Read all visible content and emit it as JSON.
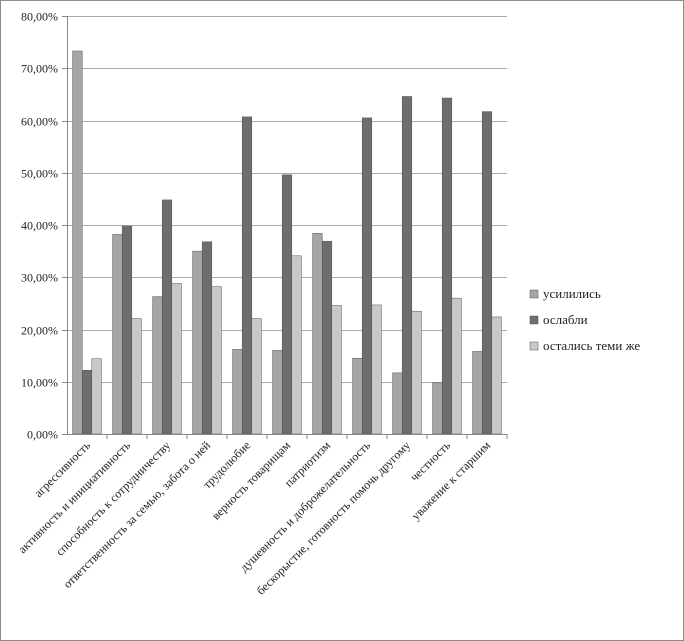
{
  "chart_data": {
    "type": "bar",
    "title": "",
    "xlabel": "",
    "ylabel": "",
    "ylim": [
      0,
      80
    ],
    "y_ticks": [
      "0,00%",
      "10,00%",
      "20,00%",
      "30,00%",
      "40,00%",
      "50,00%",
      "60,00%",
      "70,00%",
      "80,00%"
    ],
    "grid": true,
    "legend_position": "right",
    "categories": [
      "агрессивность",
      "активность и инициативность",
      "способность к сотрудничеству",
      "ответственность за семью, забота о ней",
      "трудолюбие",
      "верность товарищам",
      "патриотизм",
      "душевность и доброжелательность",
      "бескорыстие, готовность помочь другому",
      "честность",
      "уважение к старшим"
    ],
    "series": [
      {
        "name": "усилились",
        "color": "#a6a6a6",
        "values": [
          73.3,
          38.2,
          26.3,
          35.0,
          16.2,
          16.0,
          38.4,
          14.5,
          11.7,
          9.8,
          15.8
        ]
      },
      {
        "name": "ослабли",
        "color": "#6d6d6d",
        "values": [
          12.2,
          39.8,
          44.8,
          36.8,
          60.7,
          49.6,
          36.9,
          60.5,
          64.6,
          64.3,
          61.7
        ]
      },
      {
        "name": "остались теми же",
        "color": "#c8c8c8",
        "values": [
          14.4,
          22.1,
          28.8,
          28.2,
          22.1,
          34.1,
          24.6,
          24.7,
          23.5,
          26.0,
          22.4
        ]
      }
    ]
  }
}
